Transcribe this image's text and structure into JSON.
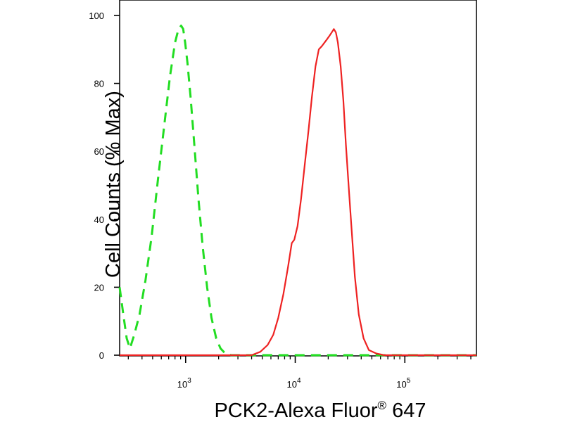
{
  "chart_data": {
    "type": "line",
    "xlabel": {
      "main": "PCK2-Alexa Fluor",
      "sup": "®",
      "tail": " 647"
    },
    "ylabel": "Cell Counts (% Max)",
    "x_scale": "log",
    "xlim": [
      250,
      450000
    ],
    "ylim": [
      0,
      100
    ],
    "x_ticks": [
      {
        "value": 1000,
        "base": "10",
        "exp": "3"
      },
      {
        "value": 10000,
        "base": "10",
        "exp": "4"
      },
      {
        "value": 100000,
        "base": "10",
        "exp": "5"
      }
    ],
    "y_ticks": [
      {
        "value": 0,
        "label": "0"
      },
      {
        "value": 20,
        "label": "20"
      },
      {
        "value": 40,
        "label": "40"
      },
      {
        "value": 60,
        "label": "60"
      },
      {
        "value": 80,
        "label": "80"
      },
      {
        "value": 100,
        "label": "100"
      }
    ],
    "grid": false,
    "series": [
      {
        "color": "#22dd22",
        "dashed": true,
        "x": [
          250,
          270,
          290,
          310,
          340,
          380,
          430,
          490,
          560,
          640,
          720,
          800,
          860,
          910,
          950,
          990,
          1040,
          1110,
          1200,
          1310,
          1430,
          1570,
          1720,
          1900,
          2080,
          2300,
          2600,
          3000,
          4000,
          10000,
          30000,
          100000,
          450000
        ],
        "y": [
          20,
          12,
          5,
          2,
          6,
          12,
          22,
          35,
          52,
          68,
          82,
          92,
          96,
          97,
          96,
          92,
          86,
          76,
          62,
          46,
          32,
          20,
          11,
          5,
          2,
          0.5,
          0,
          0,
          0,
          0,
          0,
          0,
          0
        ]
      },
      {
        "color": "#ee2222",
        "dashed": false,
        "x": [
          250,
          2000,
          4000,
          4800,
          5600,
          6300,
          7000,
          7800,
          8600,
          9300,
          9800,
          10500,
          11300,
          12200,
          13200,
          14200,
          15300,
          16400,
          17500,
          18500,
          19500,
          20500,
          21500,
          22500,
          23500,
          24500,
          26000,
          27500,
          29000,
          31000,
          33000,
          35000,
          38000,
          42000,
          47000,
          55000,
          65000,
          80000,
          100000,
          450000
        ],
        "y": [
          0,
          0,
          0,
          1,
          3,
          6,
          11,
          18,
          26,
          33,
          34,
          38,
          46,
          56,
          66,
          76,
          85,
          90,
          91,
          92,
          93,
          94,
          95,
          96,
          95,
          92,
          85,
          75,
          62,
          48,
          35,
          23,
          12,
          5,
          1.5,
          0.5,
          0,
          0,
          0,
          0
        ]
      }
    ]
  }
}
